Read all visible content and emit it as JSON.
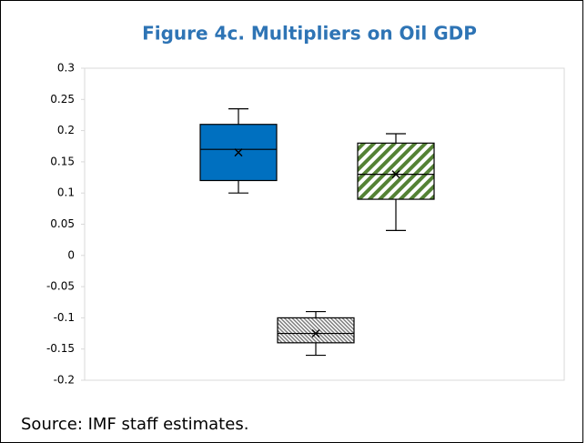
{
  "chart_data": {
    "type": "box",
    "title": "Figure 4c. Multipliers on Oil GDP",
    "source": "Source: IMF staff estimates.",
    "boxes": [
      {
        "min": 0.1,
        "q1": 0.12,
        "median": 0.17,
        "q3": 0.21,
        "max": 0.235,
        "mean": 0.165,
        "color": "#0070c0",
        "pattern": "solid"
      },
      {
        "min": -0.16,
        "q1": -0.14,
        "median": -0.125,
        "q3": -0.1,
        "max": -0.09,
        "mean": -0.125,
        "color": "#7f7f7f",
        "pattern": "dense-hatch"
      },
      {
        "min": 0.04,
        "q1": 0.09,
        "median": 0.13,
        "q3": 0.18,
        "max": 0.195,
        "mean": 0.13,
        "color": "#548235",
        "pattern": "wide-hatch"
      }
    ],
    "ylim": [
      -0.2,
      0.3
    ],
    "yticks": [
      -0.2,
      -0.15,
      -0.1,
      -0.05,
      0,
      0.05,
      0.1,
      0.15,
      0.2,
      0.25,
      0.3
    ],
    "grid": false
  }
}
